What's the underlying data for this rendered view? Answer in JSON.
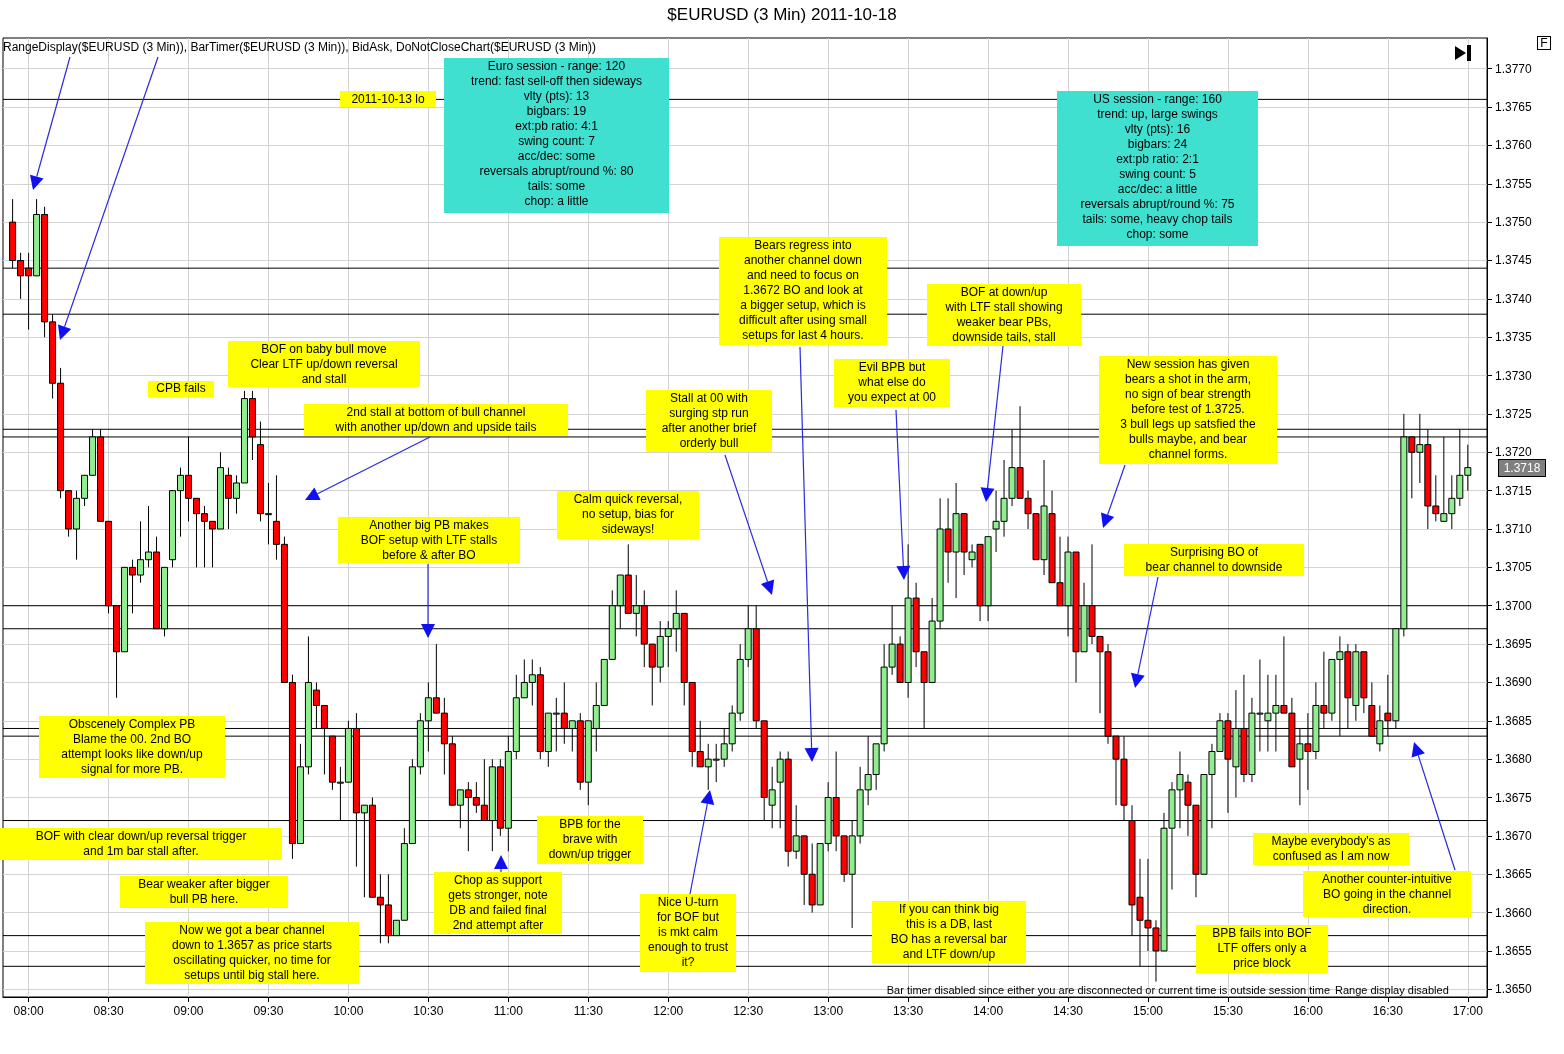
{
  "chart_data": {
    "type": "candlestick",
    "title": "$EURUSD (3 Min)  2011-10-18",
    "subtitle": "RangeDisplay($EURUSD (3 Min)), BarTimer($EURUSD (3 Min)), BidAsk, DoNotCloseChart($EURUSD (3 Min))",
    "x": [
      7.9,
      7.95,
      8,
      8.05,
      8.1,
      8.15,
      8.2,
      8.25,
      8.3,
      8.35,
      8.4,
      8.45,
      8.5,
      8.55,
      8.6,
      8.65,
      8.7,
      8.75,
      8.8,
      8.85,
      8.9,
      8.95,
      9,
      9.05,
      9.1,
      9.15,
      9.2,
      9.25,
      9.3,
      9.35,
      9.4,
      9.45,
      9.5,
      9.55,
      9.6,
      9.65,
      9.7,
      9.75,
      9.8,
      9.85,
      9.9,
      9.95,
      10,
      10.05,
      10.1,
      10.15,
      10.2,
      10.25,
      10.3,
      10.35,
      10.4,
      10.45,
      10.5,
      10.55,
      10.6,
      10.65,
      10.7,
      10.75,
      10.8,
      10.85,
      10.9,
      10.95,
      11,
      11.05,
      11.1,
      11.15,
      11.2,
      11.25,
      11.3,
      11.35,
      11.4,
      11.45,
      11.5,
      11.55,
      11.6,
      11.65,
      11.7,
      11.75,
      11.8,
      11.85,
      11.9,
      11.95,
      12,
      12.05,
      12.1,
      12.15,
      12.2,
      12.25,
      12.3,
      12.35,
      12.4,
      12.45,
      12.5,
      12.55,
      12.6,
      12.65,
      12.7,
      12.75,
      12.8,
      12.85,
      12.9,
      12.95,
      13,
      13.05,
      13.1,
      13.15,
      13.2,
      13.25,
      13.3,
      13.35,
      13.4,
      13.45,
      13.5,
      13.55,
      13.6,
      13.65,
      13.7,
      13.75,
      13.8,
      13.85,
      13.9,
      13.95,
      14,
      14.05,
      14.1,
      14.15,
      14.2,
      14.25,
      14.3,
      14.35,
      14.4,
      14.45,
      14.5,
      14.55,
      14.6,
      14.65,
      14.7,
      14.75,
      14.8,
      14.85,
      14.9,
      14.95,
      15,
      15.05,
      15.1,
      15.15,
      15.2,
      15.25,
      15.3,
      15.35,
      15.4,
      15.45,
      15.5,
      15.55,
      15.6,
      15.65,
      15.7,
      15.75,
      15.8,
      15.85,
      15.9,
      15.95,
      16,
      16.05,
      16.1,
      16.15,
      16.2,
      16.25,
      16.3,
      16.35,
      16.4,
      16.45,
      16.5,
      16.55,
      16.6,
      16.65,
      16.7,
      16.75,
      16.8,
      16.85,
      16.9,
      16.95,
      17
    ],
    "ohlc": [
      [
        1.375,
        1.3753,
        1.3744,
        1.3745
      ],
      [
        1.3745,
        1.3746,
        1.374,
        1.3743
      ],
      [
        1.3744,
        1.3746,
        1.3736,
        1.3743
      ],
      [
        1.3743,
        1.3753,
        1.3743,
        1.3751
      ],
      [
        1.3751,
        1.3752,
        1.3735,
        1.3737
      ],
      [
        1.3737,
        1.3738,
        1.3727,
        1.3729
      ],
      [
        1.3729,
        1.3731,
        1.3714,
        1.3715
      ],
      [
        1.3715,
        1.3715,
        1.3709,
        1.371
      ],
      [
        1.371,
        1.3715,
        1.3706,
        1.3714
      ],
      [
        1.3714,
        1.3717,
        1.3713,
        1.3717
      ],
      [
        1.3717,
        1.3723,
        1.3717,
        1.3722
      ],
      [
        1.3722,
        1.3723,
        1.3711,
        1.3711
      ],
      [
        1.3711,
        1.3711,
        1.3699,
        1.37
      ],
      [
        1.37,
        1.37,
        1.3688,
        1.3694
      ],
      [
        1.3694,
        1.3705,
        1.3694,
        1.3705
      ],
      [
        1.3705,
        1.3706,
        1.3699,
        1.3704
      ],
      [
        1.3704,
        1.3711,
        1.3703,
        1.3706
      ],
      [
        1.3706,
        1.3713,
        1.3705,
        1.3707
      ],
      [
        1.3707,
        1.3709,
        1.3697,
        1.3697
      ],
      [
        1.3697,
        1.3705,
        1.3696,
        1.3705
      ],
      [
        1.3706,
        1.3715,
        1.3705,
        1.3715
      ],
      [
        1.3715,
        1.3718,
        1.3709,
        1.3717
      ],
      [
        1.3717,
        1.3722,
        1.3711,
        1.3714
      ],
      [
        1.3714,
        1.3714,
        1.3705,
        1.3712
      ],
      [
        1.3712,
        1.3713,
        1.3705,
        1.3711
      ],
      [
        1.3711,
        1.3711,
        1.3705,
        1.371
      ],
      [
        1.371,
        1.372,
        1.371,
        1.3718
      ],
      [
        1.3717,
        1.3718,
        1.371,
        1.3714
      ],
      [
        1.3714,
        1.3717,
        1.3712,
        1.3716
      ],
      [
        1.3716,
        1.3728,
        1.3716,
        1.3727
      ],
      [
        1.3727,
        1.3728,
        1.3719,
        1.3722
      ],
      [
        1.3721,
        1.3724,
        1.3711,
        1.3712
      ],
      [
        1.3712,
        1.3716,
        1.3708,
        1.3712
      ],
      [
        1.3711,
        1.3717,
        1.3706,
        1.3708
      ],
      [
        1.3708,
        1.3709,
        1.369,
        1.369
      ],
      [
        1.369,
        1.3691,
        1.3667,
        1.3669
      ],
      [
        1.3669,
        1.3682,
        1.3669,
        1.3679
      ],
      [
        1.3679,
        1.3696,
        1.3678,
        1.369
      ],
      [
        1.3689,
        1.369,
        1.3684,
        1.3687
      ],
      [
        1.3687,
        1.3687,
        1.3678,
        1.3684
      ],
      [
        1.3683,
        1.3683,
        1.3676,
        1.3677
      ],
      [
        1.3677,
        1.3679,
        1.3672,
        1.3677
      ],
      [
        1.3677,
        1.3685,
        1.3677,
        1.3684
      ],
      [
        1.3684,
        1.3686,
        1.3666,
        1.3673
      ],
      [
        1.3673,
        1.3674,
        1.3662,
        1.3674
      ],
      [
        1.3674,
        1.3675,
        1.3662,
        1.3662
      ],
      [
        1.3662,
        1.3665,
        1.3656,
        1.3661
      ],
      [
        1.3661,
        1.3665,
        1.3656,
        1.3657
      ],
      [
        1.3657,
        1.3659,
        1.3657,
        1.3659
      ],
      [
        1.3659,
        1.3671,
        1.3659,
        1.3669
      ],
      [
        1.3669,
        1.368,
        1.3669,
        1.3679
      ],
      [
        1.3679,
        1.3686,
        1.3678,
        1.3685
      ],
      [
        1.3685,
        1.369,
        1.3681,
        1.3688
      ],
      [
        1.3688,
        1.3695,
        1.3686,
        1.3686
      ],
      [
        1.3686,
        1.3688,
        1.3678,
        1.3682
      ],
      [
        1.3682,
        1.3683,
        1.3674,
        1.3674
      ],
      [
        1.3674,
        1.3676,
        1.3671,
        1.3676
      ],
      [
        1.3676,
        1.3677,
        1.3668,
        1.3675
      ],
      [
        1.3675,
        1.3677,
        1.3673,
        1.3674
      ],
      [
        1.3674,
        1.368,
        1.3672,
        1.3672
      ],
      [
        1.3672,
        1.368,
        1.3668,
        1.3679
      ],
      [
        1.3679,
        1.368,
        1.367,
        1.3671
      ],
      [
        1.3671,
        1.3683,
        1.3668,
        1.3681
      ],
      [
        1.3681,
        1.3691,
        1.368,
        1.3688
      ],
      [
        1.3688,
        1.3693,
        1.3688,
        1.369
      ],
      [
        1.369,
        1.3693,
        1.3687,
        1.3691
      ],
      [
        1.3691,
        1.3692,
        1.368,
        1.3681
      ],
      [
        1.3681,
        1.3686,
        1.3679,
        1.3686
      ],
      [
        1.3686,
        1.3688,
        1.3681,
        1.3686
      ],
      [
        1.3686,
        1.369,
        1.3682,
        1.3684
      ],
      [
        1.3684,
        1.3685,
        1.3681,
        1.3685
      ],
      [
        1.3685,
        1.3686,
        1.3676,
        1.3677
      ],
      [
        1.3677,
        1.3685,
        1.3674,
        1.3685
      ],
      [
        1.3684,
        1.369,
        1.3681,
        1.3687
      ],
      [
        1.3687,
        1.3693,
        1.3687,
        1.3693
      ],
      [
        1.3693,
        1.3702,
        1.3693,
        1.37
      ],
      [
        1.37,
        1.3704,
        1.3697,
        1.3704
      ],
      [
        1.3704,
        1.3708,
        1.3699,
        1.3699
      ],
      [
        1.3699,
        1.3704,
        1.3696,
        1.37
      ],
      [
        1.37,
        1.3702,
        1.3692,
        1.3695
      ],
      [
        1.3695,
        1.3695,
        1.3687,
        1.3692
      ],
      [
        1.3692,
        1.3698,
        1.369,
        1.3696
      ],
      [
        1.3696,
        1.3698,
        1.3692,
        1.3697
      ],
      [
        1.3697,
        1.3702,
        1.3694,
        1.3699
      ],
      [
        1.3699,
        1.3699,
        1.3687,
        1.369
      ],
      [
        1.369,
        1.369,
        1.3679,
        1.3681
      ],
      [
        1.3681,
        1.3685,
        1.3679,
        1.3679
      ],
      [
        1.3679,
        1.3682,
        1.3676,
        1.368
      ],
      [
        1.368,
        1.3682,
        1.3677,
        1.368
      ],
      [
        1.368,
        1.3684,
        1.3679,
        1.3682
      ],
      [
        1.3682,
        1.3687,
        1.3681,
        1.3686
      ],
      [
        1.3686,
        1.3695,
        1.3685,
        1.3693
      ],
      [
        1.3693,
        1.37,
        1.3692,
        1.3697
      ],
      [
        1.3697,
        1.37,
        1.3684,
        1.3685
      ],
      [
        1.3685,
        1.3685,
        1.3672,
        1.3675
      ],
      [
        1.3674,
        1.3679,
        1.3671,
        1.3676
      ],
      [
        1.3677,
        1.3681,
        1.3671,
        1.368
      ],
      [
        1.368,
        1.3681,
        1.3666,
        1.3668
      ],
      [
        1.3668,
        1.3674,
        1.3667,
        1.367
      ],
      [
        1.367,
        1.367,
        1.3661,
        1.3665
      ],
      [
        1.3665,
        1.3669,
        1.366,
        1.3661
      ],
      [
        1.3661,
        1.3669,
        1.3661,
        1.3669
      ],
      [
        1.3669,
        1.3677,
        1.3668,
        1.3675
      ],
      [
        1.3675,
        1.3681,
        1.3668,
        1.367
      ],
      [
        1.367,
        1.367,
        1.3664,
        1.3665
      ],
      [
        1.3665,
        1.3672,
        1.3658,
        1.367
      ],
      [
        1.367,
        1.3679,
        1.3669,
        1.3676
      ],
      [
        1.3676,
        1.3683,
        1.3674,
        1.3678
      ],
      [
        1.3678,
        1.3682,
        1.3676,
        1.3682
      ],
      [
        1.3682,
        1.3695,
        1.3681,
        1.3692
      ],
      [
        1.3692,
        1.37,
        1.3691,
        1.3695
      ],
      [
        1.3695,
        1.3696,
        1.369,
        1.369
      ],
      [
        1.369,
        1.3708,
        1.3688,
        1.3701
      ],
      [
        1.3701,
        1.3703,
        1.3692,
        1.3694
      ],
      [
        1.3694,
        1.3694,
        1.3684,
        1.369
      ],
      [
        1.369,
        1.3701,
        1.369,
        1.3698
      ],
      [
        1.3698,
        1.3714,
        1.3697,
        1.371
      ],
      [
        1.371,
        1.3714,
        1.3703,
        1.3707
      ],
      [
        1.3707,
        1.3716,
        1.3701,
        1.3712
      ],
      [
        1.3712,
        1.3712,
        1.3704,
        1.3707
      ],
      [
        1.3706,
        1.3708,
        1.3705,
        1.3707
      ],
      [
        1.3708,
        1.3708,
        1.3698,
        1.37
      ],
      [
        1.37,
        1.3709,
        1.3698,
        1.3709
      ],
      [
        1.371,
        1.3715,
        1.3707,
        1.3711
      ],
      [
        1.3711,
        1.3719,
        1.3709,
        1.3714
      ],
      [
        1.3714,
        1.3723,
        1.3713,
        1.3718
      ],
      [
        1.3718,
        1.3726,
        1.3714,
        1.3714
      ],
      [
        1.3714,
        1.3715,
        1.371,
        1.3712
      ],
      [
        1.3712,
        1.3712,
        1.3706,
        1.3706
      ],
      [
        1.3706,
        1.3719,
        1.3704,
        1.3713
      ],
      [
        1.3712,
        1.3715,
        1.3703,
        1.3703
      ],
      [
        1.3703,
        1.3709,
        1.37,
        1.37
      ],
      [
        1.37,
        1.3709,
        1.3696,
        1.3707
      ],
      [
        1.3707,
        1.3707,
        1.369,
        1.3694
      ],
      [
        1.3694,
        1.3703,
        1.3694,
        1.37
      ],
      [
        1.37,
        1.3708,
        1.3695,
        1.3696
      ],
      [
        1.3696,
        1.3696,
        1.3686,
        1.3694
      ],
      [
        1.3694,
        1.3695,
        1.3682,
        1.3683
      ],
      [
        1.3683,
        1.3683,
        1.3674,
        1.368
      ],
      [
        1.368,
        1.3683,
        1.3672,
        1.3674
      ],
      [
        1.3672,
        1.3674,
        1.3657,
        1.3661
      ],
      [
        1.3662,
        1.3667,
        1.3653,
        1.3659
      ],
      [
        1.3659,
        1.3667,
        1.3655,
        1.3658
      ],
      [
        1.3658,
        1.3659,
        1.3651,
        1.3655
      ],
      [
        1.3655,
        1.3673,
        1.3655,
        1.3671
      ],
      [
        1.3671,
        1.3677,
        1.3663,
        1.3676
      ],
      [
        1.3676,
        1.3681,
        1.3671,
        1.3678
      ],
      [
        1.3677,
        1.3678,
        1.367,
        1.3674
      ],
      [
        1.3674,
        1.3674,
        1.3662,
        1.3665
      ],
      [
        1.3665,
        1.3678,
        1.3665,
        1.3678
      ],
      [
        1.3678,
        1.3682,
        1.3671,
        1.3681
      ],
      [
        1.3681,
        1.3686,
        1.3681,
        1.3685
      ],
      [
        1.3685,
        1.3686,
        1.3673,
        1.368
      ],
      [
        1.3679,
        1.3689,
        1.3675,
        1.3684
      ],
      [
        1.3684,
        1.3691,
        1.3677,
        1.3678
      ],
      [
        1.3678,
        1.3688,
        1.3677,
        1.3686
      ],
      [
        1.3686,
        1.3693,
        1.3681,
        1.3686
      ],
      [
        1.3685,
        1.3691,
        1.3681,
        1.3686
      ],
      [
        1.3686,
        1.3691,
        1.3681,
        1.3687
      ],
      [
        1.3687,
        1.3696,
        1.3686,
        1.3686
      ],
      [
        1.3686,
        1.3688,
        1.3679,
        1.3679
      ],
      [
        1.368,
        1.3684,
        1.3674,
        1.3682
      ],
      [
        1.3682,
        1.3686,
        1.3676,
        1.3681
      ],
      [
        1.3681,
        1.369,
        1.368,
        1.3687
      ],
      [
        1.3687,
        1.3694,
        1.3684,
        1.3686
      ],
      [
        1.3686,
        1.3693,
        1.3685,
        1.3693
      ],
      [
        1.3693,
        1.3696,
        1.3683,
        1.3694
      ],
      [
        1.3694,
        1.3695,
        1.3684,
        1.3688
      ],
      [
        1.3687,
        1.3695,
        1.3685,
        1.3694
      ],
      [
        1.3694,
        1.3694,
        1.3686,
        1.3688
      ],
      [
        1.3687,
        1.369,
        1.3683,
        1.3683
      ],
      [
        1.3682,
        1.3687,
        1.3681,
        1.3685
      ],
      [
        1.3686,
        1.3691,
        1.3683,
        1.3685
      ],
      [
        1.3685,
        1.3697,
        1.3684,
        1.3697
      ],
      [
        1.3697,
        1.3725,
        1.3696,
        1.3722
      ],
      [
        1.3722,
        1.3722,
        1.3714,
        1.372
      ],
      [
        1.372,
        1.3725,
        1.3716,
        1.3721
      ],
      [
        1.3721,
        1.3723,
        1.371,
        1.3713
      ],
      [
        1.3713,
        1.3717,
        1.3711,
        1.3712
      ],
      [
        1.3711,
        1.3722,
        1.3711,
        1.3712
      ],
      [
        1.3712,
        1.3717,
        1.371,
        1.3714
      ],
      [
        1.3714,
        1.3723,
        1.3713,
        1.3717
      ],
      [
        1.3717,
        1.3721,
        1.3715,
        1.3718
      ]
    ],
    "xlim": [
      7.84,
      17.12
    ],
    "xticks": [
      {
        "value": 8,
        "label": "08:00"
      },
      {
        "value": 8.5,
        "label": "08:30"
      },
      {
        "value": 9,
        "label": "09:00"
      },
      {
        "value": 9.5,
        "label": "09:30"
      },
      {
        "value": 10,
        "label": "10:00"
      },
      {
        "value": 10.5,
        "label": "10:30"
      },
      {
        "value": 11,
        "label": "11:00"
      },
      {
        "value": 11.5,
        "label": "11:30"
      },
      {
        "value": 12,
        "label": "12:00"
      },
      {
        "value": 12.5,
        "label": "12:30"
      },
      {
        "value": 13,
        "label": "13:00"
      },
      {
        "value": 13.5,
        "label": "13:30"
      },
      {
        "value": 14,
        "label": "14:00"
      },
      {
        "value": 14.5,
        "label": "14:30"
      },
      {
        "value": 15,
        "label": "15:00"
      },
      {
        "value": 15.5,
        "label": "15:30"
      },
      {
        "value": 16,
        "label": "16:00"
      },
      {
        "value": 16.5,
        "label": "16:30"
      },
      {
        "value": 17,
        "label": "17:00"
      }
    ],
    "ylim": [
      1.3649,
      1.3774
    ],
    "yticks": [
      {
        "value": 1.365,
        "label": "1.3650"
      },
      1.3655,
      {
        "value": 1.366,
        "label": "1.3660"
      },
      1.3665,
      {
        "value": 1.367,
        "label": "1.3670"
      },
      1.3675,
      {
        "value": 1.368,
        "label": "1.3680"
      },
      1.3685,
      {
        "value": 1.369,
        "label": "1.3690"
      },
      1.3695,
      {
        "value": 1.37,
        "label": "1.3700"
      },
      1.3705,
      {
        "value": 1.371,
        "label": "1.3710"
      },
      1.3715,
      {
        "value": 1.372,
        "label": "1.3720"
      },
      1.3725,
      {
        "value": 1.373,
        "label": "1.3730"
      },
      1.3735,
      {
        "value": 1.374,
        "label": "1.3740"
      },
      1.3745,
      {
        "value": 1.375,
        "label": "1.3750"
      },
      1.3755,
      {
        "value": 1.376,
        "label": "1.3760"
      },
      1.3765,
      {
        "value": 1.377,
        "label": "1.3770"
      }
    ],
    "grid": true,
    "ref_lines": [
      {
        "axis": "y",
        "value": 1.3766,
        "label": "2011-10-13 lo",
        "color": "#000000"
      },
      {
        "axis": "y",
        "value": 1.3744,
        "color": "#000000"
      },
      {
        "axis": "y",
        "value": 1.3738,
        "color": "#000000"
      },
      {
        "axis": "y",
        "value": 1.3723,
        "color": "#000000"
      },
      {
        "axis": "y",
        "value": 1.3722,
        "color": "#000000"
      },
      {
        "axis": "y",
        "value": 1.37,
        "color": "#000000"
      },
      {
        "axis": "y",
        "value": 1.3697,
        "color": "#000000"
      },
      {
        "axis": "y",
        "value": 1.3684,
        "color": "#000000"
      },
      {
        "axis": "y",
        "value": 1.3683,
        "color": "#000000"
      },
      {
        "axis": "y",
        "value": 1.3672,
        "color": "#000000"
      },
      {
        "axis": "y",
        "value": 1.3657,
        "color": "#000000"
      },
      {
        "axis": "y",
        "value": 1.3653,
        "color": "#000000"
      }
    ],
    "annotations": [
      "Euro session - range: 120\ntrend: fast sell-off then sideways\nvlty (pts): 13\nbigbars: 19\next:pb ratio: 4:1\nswing count: 7\nacc/dec: some\nreversals abrupt/round %: 80\ntails: some\nchop: a little",
      "US session - range: 160\ntrend: up, large swings\nvlty (pts): 16\nbigbars: 24\next:pb ratio: 2:1\nswing count: 5\nacc/dec: a little\nreversals abrupt/round %: 75\ntails: some, heavy chop tails\nchop: some",
      "CPB fails",
      "BOF on baby bull move\nClear LTF up/down reversal\nand stall",
      "2nd stall at bottom of bull channel\nwith another up/down and upside tails",
      "Another big PB makes\nBOF setup with LTF stalls\nbefore & after BO",
      "Calm quick reversal,\nno setup, bias for\nsideways!",
      "Stall at 00 with\nsurging stp run\nafter another brief\norderly bull",
      "Bears regress into\nanother channel down\nand need to focus on\n1.3672 BO and look at\na bigger setup, which is\ndifficult after using small\nsetups for last 4 hours.",
      "Evil BPB but\nwhat else do\nyou expect at 00",
      "BOF at down/up\nwith LTF stall showing\nweaker bear PBs,\ndownside tails, stall",
      "New session has given\nbears a shot in the arm,\nno sign of bear strength\nbefore test of 1.3725.\n3 bull legs up satsfied the\nbulls maybe, and bear\nchannel forms.",
      "Surprising BO of\nbear channel to downside",
      "Obscenely Complex PB\nBlame the 00. 2nd BO\nattempt looks like down/up\nsignal for more PB.",
      "BOF with clear down/up reversal trigger\nand 1m bar stall after.",
      "Bear weaker after bigger\nbull PB here.",
      "Now we got a bear channel\ndown to 1.3657 as price starts\noscillating quicker, no time for\nsetups until big stall here.",
      "Chop as support\ngets stronger, note\nDB and failed final\n2nd attempt after",
      "BPB for the\nbrave with\ndown/up trigger",
      "Nice U-turn\nfor BOF but\nis mkt calm\nenough to trust\nit?",
      "If you can think big\nthis is a DB, last\nBO has a reversal bar\nand LTF down/up",
      "BPB fails into BOF\nLTF offers only a\nprice block",
      "Maybe everybody's as\nconfused as I am now",
      "Another counter-intuitive\nBO going in the channel\ndirection.",
      "Bar timer disabled since either you are disconnected or current time is outside session time",
      "Range display disabled",
      "F",
      "1.3718"
    ]
  }
}
